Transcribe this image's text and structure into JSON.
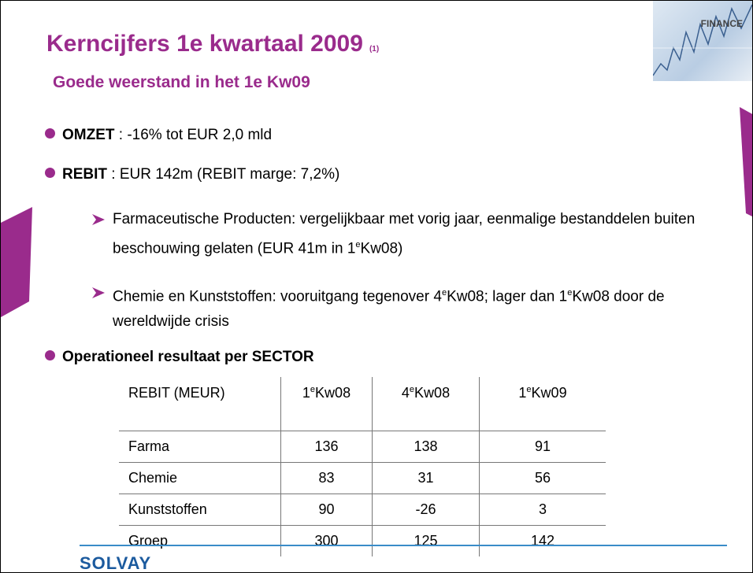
{
  "header": {
    "title": "Kerncijfers 1e kwartaal 2009",
    "title_note": "(1)",
    "subtitle": "Goede weerstand in het 1e Kw09",
    "badge": "FINANCE"
  },
  "bullets": [
    {
      "runs": [
        {
          "b": "OMZET"
        },
        {
          "t": " : -16% tot EUR 2,0 mld"
        }
      ]
    },
    {
      "runs": [
        {
          "b": "REBIT"
        },
        {
          "t": " : EUR 142m (REBIT marge: 7,2%)"
        }
      ],
      "sub": [
        {
          "runs": [
            {
              "t": "Farmaceutische Producten: vergelijkbaar met vorig jaar, eenmalige bestanddelen buiten beschouwing gelaten (EUR 41m in 1"
            },
            {
              "sup": "e"
            },
            {
              "t": "Kw08)"
            }
          ]
        },
        {
          "runs": [
            {
              "t": "Chemie en Kunststoffen: vooruitgang tegenover 4"
            },
            {
              "sup": "e"
            },
            {
              "t": "Kw08; lager dan 1"
            },
            {
              "sup": "e"
            },
            {
              "t": "Kw08 door de wereldwijde crisis"
            }
          ]
        }
      ]
    },
    {
      "runs": [
        {
          "b": "Operationeel resultaat per SECTOR"
        }
      ]
    }
  ],
  "table": {
    "header": [
      [
        {
          "t": "REBIT (MEUR)"
        }
      ],
      [
        {
          "t": "1"
        },
        {
          "sup": "e"
        },
        {
          "t": "Kw08"
        }
      ],
      [
        {
          "t": "4"
        },
        {
          "sup": "e"
        },
        {
          "t": "Kw08"
        }
      ],
      [
        {
          "t": "1"
        },
        {
          "sup": "e"
        },
        {
          "t": "Kw09"
        }
      ]
    ],
    "rows": [
      [
        "Farma",
        136,
        138,
        91
      ],
      [
        "Chemie",
        83,
        31,
        56
      ],
      [
        "Kunststoffen",
        90,
        -26,
        3
      ],
      [
        "Groep",
        300,
        125,
        142
      ]
    ]
  },
  "footer": {
    "logo": "SOLVAY"
  }
}
